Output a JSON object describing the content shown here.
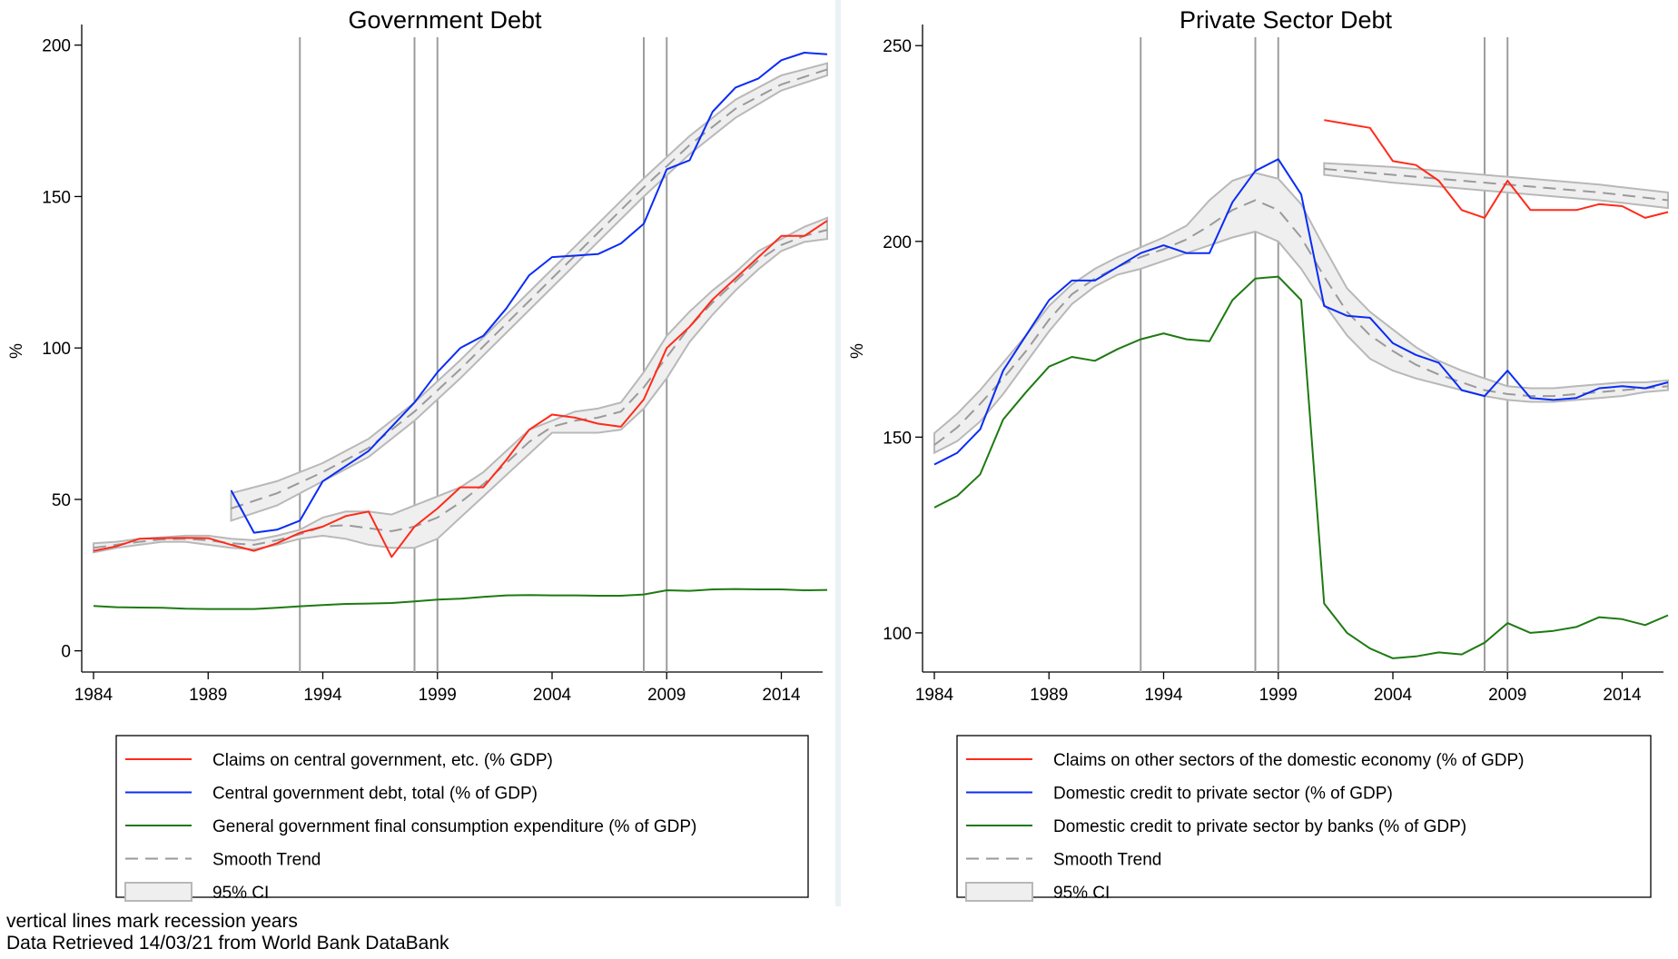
{
  "footer": {
    "note1": "vertical lines mark recession years",
    "note2": "Data Retrieved 14/03/21 from World Bank DataBank"
  },
  "colors": {
    "red": "#ff2a1a",
    "blue": "#0a2cf5",
    "green": "#1e7a12",
    "trend": "#9a9a9a",
    "ci_fill": "#efefef",
    "ci_edge": "#b8b8b8",
    "recession_line": "#9d9d9d"
  },
  "chart_data": [
    {
      "type": "line",
      "title": "Government Debt",
      "ylabel": "%",
      "xlabel": "",
      "xlim": [
        1984,
        2016
      ],
      "ylim": [
        0,
        200
      ],
      "xticks": [
        1984,
        1989,
        1994,
        1999,
        2004,
        2009,
        2014
      ],
      "yticks": [
        0,
        50,
        100,
        150,
        200
      ],
      "recession_years": [
        1993,
        1998,
        1999,
        2008,
        2009
      ],
      "legend_position": "bottom",
      "series": [
        {
          "name": "Claims on central government, etc. (% GDP)",
          "color": "red",
          "x": [
            1984,
            1985,
            1986,
            1987,
            1988,
            1989,
            1990,
            1991,
            1992,
            1993,
            1994,
            1995,
            1996,
            1997,
            1998,
            1999,
            2000,
            2001,
            2002,
            2003,
            2004,
            2005,
            2006,
            2007,
            2008,
            2009,
            2010,
            2011,
            2012,
            2013,
            2014,
            2015,
            2016
          ],
          "values": [
            33,
            34.5,
            37,
            37.2,
            37.3,
            37.2,
            35,
            33,
            35.5,
            39,
            41,
            44.5,
            46,
            31,
            41,
            47,
            54,
            54,
            63,
            73,
            78,
            77,
            75,
            74,
            83,
            100,
            107,
            116,
            123,
            130,
            137,
            137,
            142
          ]
        },
        {
          "name": "Central government debt, total (% of GDP)",
          "color": "blue",
          "x": [
            1990,
            1991,
            1992,
            1993,
            1994,
            1995,
            1996,
            1997,
            1998,
            1999,
            2000,
            2001,
            2002,
            2003,
            2004,
            2005,
            2006,
            2007,
            2008,
            2009,
            2010,
            2011,
            2012,
            2013,
            2014,
            2015,
            2016
          ],
          "values": [
            53,
            39,
            40,
            43,
            56,
            61,
            66,
            74,
            82,
            92,
            100,
            104,
            113,
            124,
            130,
            130.5,
            131,
            134.5,
            141,
            159,
            162,
            178,
            186,
            189,
            195,
            197.5,
            197
          ]
        },
        {
          "name": "General government final consumption expenditure (% of GDP)",
          "color": "green",
          "x": [
            1984,
            1985,
            1986,
            1987,
            1988,
            1989,
            1990,
            1991,
            1992,
            1993,
            1994,
            1995,
            1996,
            1997,
            1998,
            1999,
            2000,
            2001,
            2002,
            2003,
            2004,
            2005,
            2006,
            2007,
            2008,
            2009,
            2010,
            2011,
            2012,
            2013,
            2014,
            2015,
            2016
          ],
          "values": [
            14.8,
            14.4,
            14.3,
            14.2,
            13.9,
            13.8,
            13.8,
            13.8,
            14.2,
            14.7,
            15.1,
            15.5,
            15.6,
            15.8,
            16.3,
            16.9,
            17.2,
            17.8,
            18.3,
            18.4,
            18.3,
            18.3,
            18.2,
            18.2,
            18.6,
            20,
            19.8,
            20.3,
            20.4,
            20.3,
            20.3,
            20,
            20.1
          ]
        },
        {
          "name": "Smooth Trend",
          "style": "dashed",
          "segments": [
            {
              "x": [
                1984,
                1985,
                1986,
                1987,
                1988,
                1989,
                1990,
                1991,
                1992,
                1993,
                1994,
                1995,
                1996,
                1997,
                1998,
                1999,
                2000,
                2001,
                2002,
                2003,
                2004,
                2005,
                2006,
                2007,
                2008,
                2009,
                2010,
                2011,
                2012,
                2013,
                2014,
                2015,
                2016
              ],
              "values": [
                34,
                35,
                36,
                36.8,
                37,
                36.5,
                35.5,
                35,
                36.5,
                38.5,
                41,
                41.5,
                40.5,
                39.5,
                41,
                44,
                49,
                55,
                62,
                69,
                74,
                76,
                77,
                79,
                87,
                97,
                107,
                115,
                122,
                129,
                134,
                137,
                139
              ]
            },
            {
              "x": [
                1990,
                1992,
                1994,
                1996,
                1998,
                2000,
                2002,
                2004,
                2006,
                2008,
                2010,
                2012,
                2014,
                2016
              ],
              "values": [
                47,
                52,
                59,
                67,
                79,
                93,
                108,
                123,
                138,
                153,
                167,
                179,
                187,
                192
              ]
            }
          ]
        },
        {
          "name": "95% CI",
          "style": "band",
          "bands": [
            {
              "x": [
                1984,
                1985,
                1986,
                1987,
                1988,
                1989,
                1990,
                1991,
                1992,
                1993,
                1994,
                1995,
                1996,
                1997,
                1998,
                1999,
                2000,
                2001,
                2002,
                2003,
                2004,
                2005,
                2006,
                2007,
                2008,
                2009,
                2010,
                2011,
                2012,
                2013,
                2014,
                2015,
                2016
              ],
              "lower": [
                32.5,
                34,
                35,
                36,
                36,
                35,
                34,
                33.5,
                35,
                37,
                38,
                37,
                35,
                34,
                34,
                37,
                44,
                51,
                58,
                65,
                72,
                72,
                72,
                73,
                80,
                90,
                102,
                111,
                119,
                126,
                132,
                135,
                136
              ],
              "upper": [
                35.5,
                36,
                37,
                37.5,
                38,
                38,
                37,
                36.5,
                38,
                40,
                44,
                46,
                46,
                45,
                48,
                51,
                54,
                59,
                66,
                73,
                76,
                79,
                80,
                82,
                92,
                104,
                112,
                119,
                125,
                132,
                136,
                140,
                143
              ]
            },
            {
              "x": [
                1990,
                1992,
                1994,
                1996,
                1998,
                2000,
                2002,
                2004,
                2006,
                2008,
                2010,
                2012,
                2014,
                2016
              ],
              "lower": [
                43,
                48,
                56,
                64,
                76,
                90,
                105,
                120,
                135,
                150,
                164,
                176,
                185,
                190
              ],
              "upper": [
                52,
                56,
                62,
                70,
                82,
                96,
                111,
                126,
                141,
                156,
                170,
                182,
                190,
                194
              ]
            }
          ]
        }
      ]
    },
    {
      "type": "line",
      "title": "Private Sector Debt",
      "ylabel": "%",
      "xlabel": "",
      "xlim": [
        1984,
        2016
      ],
      "ylim": [
        90,
        250
      ],
      "xticks": [
        1984,
        1989,
        1994,
        1999,
        2004,
        2009,
        2014
      ],
      "yticks": [
        100,
        150,
        200,
        250
      ],
      "recession_years": [
        1993,
        1998,
        1999,
        2008,
        2009
      ],
      "legend_position": "bottom",
      "series": [
        {
          "name": "Claims on other sectors of the domestic economy (% of GDP)",
          "color": "red",
          "x": [
            2001,
            2002,
            2003,
            2004,
            2005,
            2006,
            2007,
            2008,
            2009,
            2010,
            2011,
            2012,
            2013,
            2014,
            2015,
            2016
          ],
          "values": [
            231,
            230,
            229,
            220.5,
            219.5,
            215.5,
            208,
            206,
            215.5,
            208,
            208,
            208,
            209.5,
            209,
            206,
            207.5
          ]
        },
        {
          "name": "Domestic credit to private sector (% of GDP)",
          "color": "blue",
          "x": [
            1984,
            1985,
            1986,
            1987,
            1988,
            1989,
            1990,
            1991,
            1992,
            1993,
            1994,
            1995,
            1996,
            1997,
            1998,
            1999,
            2000,
            2001,
            2002,
            2003,
            2004,
            2005,
            2006,
            2007,
            2008,
            2009,
            2010,
            2011,
            2012,
            2013,
            2014,
            2015,
            2016
          ],
          "values": [
            143,
            146,
            152,
            167,
            176,
            185,
            190,
            190,
            193.5,
            197,
            199,
            197,
            197,
            210,
            218,
            221,
            212,
            183.5,
            181,
            180.5,
            174,
            171,
            169,
            162,
            160.5,
            167,
            160,
            159.5,
            160,
            162.5,
            163,
            162.5,
            164
          ]
        },
        {
          "name": "Domestic credit to private sector by banks (% of GDP)",
          "color": "green",
          "x": [
            1984,
            1985,
            1986,
            1987,
            1988,
            1989,
            1990,
            1991,
            1992,
            1993,
            1994,
            1995,
            1996,
            1997,
            1998,
            1999,
            2000,
            2001,
            2002,
            2003,
            2004,
            2005,
            2006,
            2007,
            2008,
            2009,
            2010,
            2011,
            2012,
            2013,
            2014,
            2015,
            2016
          ],
          "values": [
            132,
            135,
            140.5,
            154.5,
            161.5,
            168,
            170.5,
            169.5,
            172.5,
            175,
            176.5,
            175,
            174.5,
            185,
            190.5,
            191,
            185,
            107.5,
            100,
            96,
            93.5,
            94,
            95,
            94.5,
            97.5,
            102.5,
            100,
            100.5,
            101.5,
            104,
            103.5,
            102,
            104.5
          ]
        },
        {
          "name": "Smooth Trend",
          "style": "dashed",
          "segments": [
            {
              "x": [
                1984,
                1985,
                1986,
                1987,
                1988,
                1989,
                1990,
                1991,
                1992,
                1993,
                1994,
                1995,
                1996,
                1997,
                1998,
                1999,
                2000,
                2001,
                2002,
                2003,
                2004,
                2005,
                2006,
                2007,
                2008,
                2009,
                2010,
                2011,
                2012,
                2013,
                2014,
                2015,
                2016
              ],
              "values": [
                148,
                152.5,
                158.5,
                165,
                172,
                180,
                186.5,
                190.5,
                193.5,
                196,
                198,
                200.5,
                204,
                208,
                210.5,
                208,
                201,
                191,
                182,
                176,
                172,
                168.5,
                166,
                164,
                162,
                161,
                160.5,
                160.5,
                161,
                161.5,
                162,
                162.5,
                163
              ]
            },
            {
              "x": [
                2001,
                2004,
                2007,
                2010,
                2013,
                2016
              ],
              "values": [
                218.5,
                217,
                215.5,
                214,
                212.5,
                210.5
              ]
            }
          ]
        },
        {
          "name": "95% CI",
          "style": "band",
          "bands": [
            {
              "x": [
                1984,
                1985,
                1986,
                1987,
                1988,
                1989,
                1990,
                1991,
                1992,
                1993,
                1994,
                1995,
                1996,
                1997,
                1998,
                1999,
                2000,
                2001,
                2002,
                2003,
                2004,
                2005,
                2006,
                2007,
                2008,
                2009,
                2010,
                2011,
                2012,
                2013,
                2014,
                2015,
                2016
              ],
              "lower": [
                146,
                149,
                154,
                161,
                169,
                177,
                184,
                188.5,
                191.5,
                193,
                195,
                197,
                199,
                201,
                202.5,
                200,
                193,
                184,
                176,
                170,
                167,
                165,
                163.5,
                162,
                160.5,
                159.5,
                159,
                159,
                159.5,
                160,
                160.5,
                161.5,
                162
              ],
              "upper": [
                151,
                156,
                162,
                169,
                176,
                183.5,
                189,
                193,
                196,
                198.5,
                201,
                204,
                210.5,
                215.5,
                217.5,
                216,
                209.5,
                198.5,
                188,
                182,
                177.5,
                173,
                169.5,
                167,
                165,
                163,
                162.5,
                162.5,
                163,
                163.5,
                164,
                164,
                164.5
              ]
            },
            {
              "x": [
                2001,
                2004,
                2007,
                2010,
                2013,
                2016
              ],
              "lower": [
                217,
                215,
                213.5,
                212,
                210.5,
                208.5
              ],
              "upper": [
                220,
                219,
                217.5,
                216,
                214.5,
                212.5
              ]
            }
          ]
        }
      ]
    }
  ]
}
